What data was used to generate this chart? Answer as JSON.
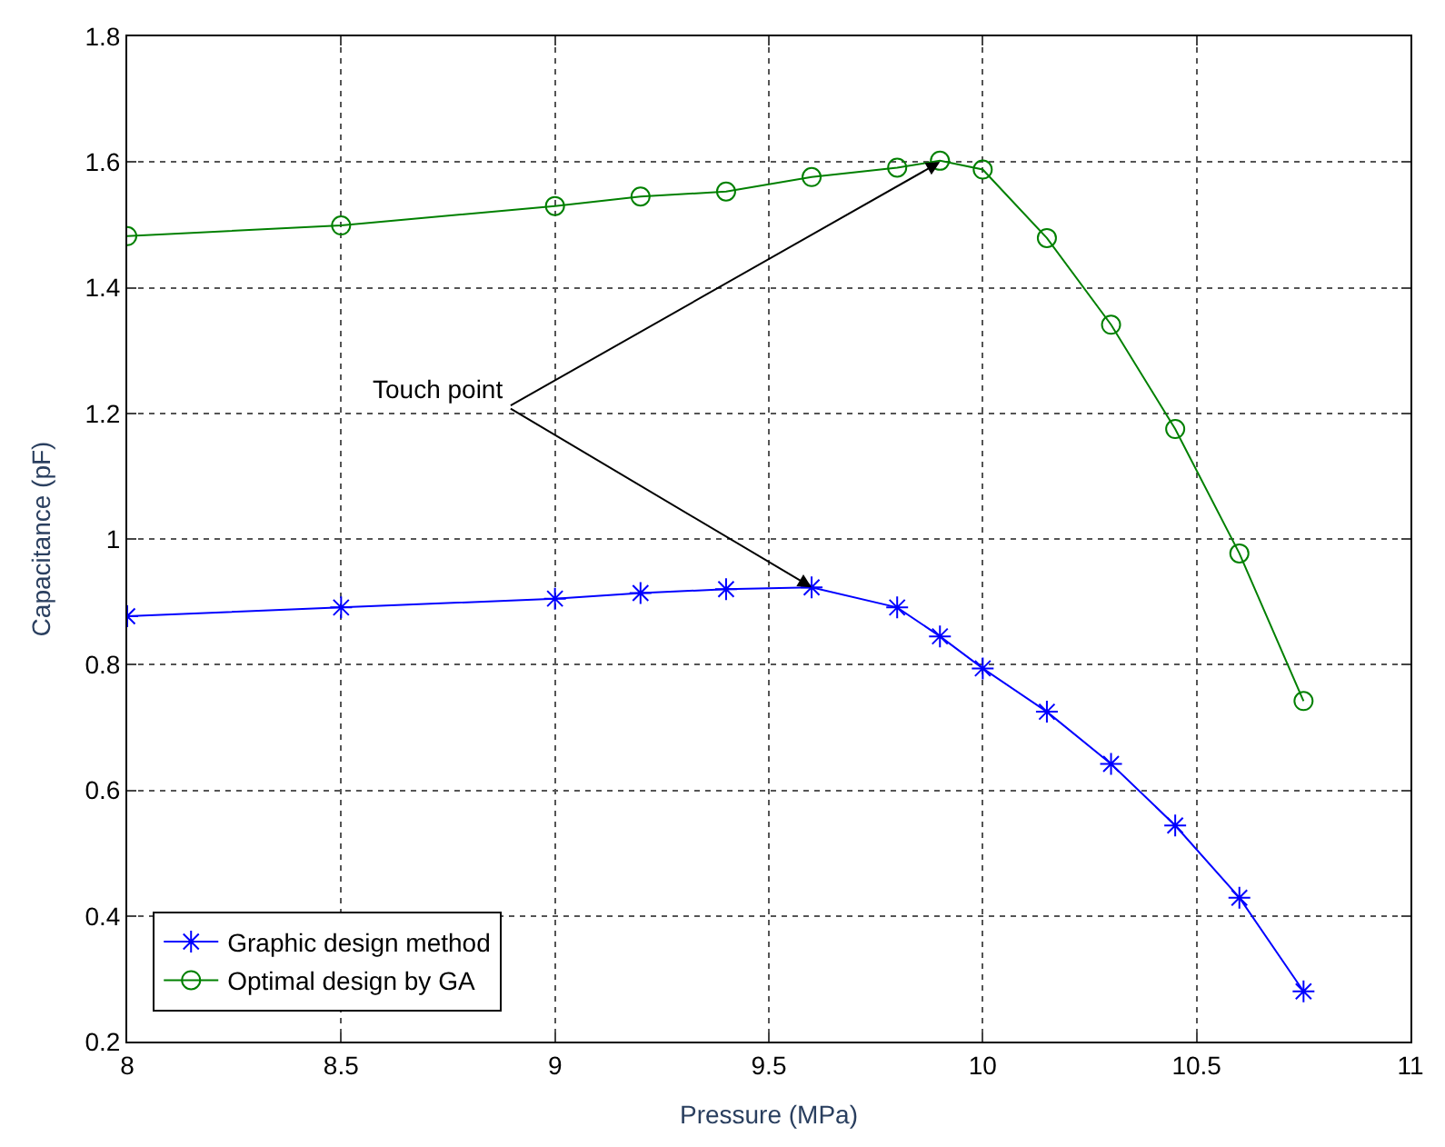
{
  "chart_data": {
    "type": "line",
    "xlabel": "Pressure (MPa)",
    "ylabel": "Capacitance (pF)",
    "xlim": [
      8,
      11
    ],
    "xticks": [
      8,
      8.5,
      9,
      9.5,
      10,
      10.5,
      11
    ],
    "ylim": [
      0.2,
      1.8
    ],
    "yticks": [
      0.2,
      0.4,
      0.6,
      0.8,
      1,
      1.2,
      1.4,
      1.6,
      1.8
    ],
    "grid": true,
    "legend": "bottom left",
    "series": [
      {
        "name": "Graphic design method",
        "color": "#0000ff",
        "marker": "cross",
        "x": [
          8,
          8.5,
          9,
          9.2,
          9.4,
          9.6,
          9.8,
          9.9,
          10,
          10.15,
          10.3,
          10.45,
          10.6,
          10.75
        ],
        "values": [
          0.877,
          0.891,
          0.905,
          0.914,
          0.92,
          0.923,
          0.891,
          0.845,
          0.794,
          0.725,
          0.642,
          0.544,
          0.429,
          0.28
        ]
      },
      {
        "name": "Optimal design by GA",
        "color": "#008000",
        "marker": "circle",
        "x": [
          8,
          8.5,
          9,
          9.2,
          9.4,
          9.6,
          9.8,
          9.9,
          10,
          10.15,
          10.3,
          10.45,
          10.6,
          10.75
        ],
        "values": [
          1.482,
          1.499,
          1.53,
          1.545,
          1.553,
          1.576,
          1.591,
          1.602,
          1.588,
          1.479,
          1.341,
          1.175,
          0.977,
          0.742
        ]
      }
    ],
    "annotations": [
      {
        "text": "Touch point",
        "x": 9.9,
        "y": 1.6
      }
    ]
  }
}
